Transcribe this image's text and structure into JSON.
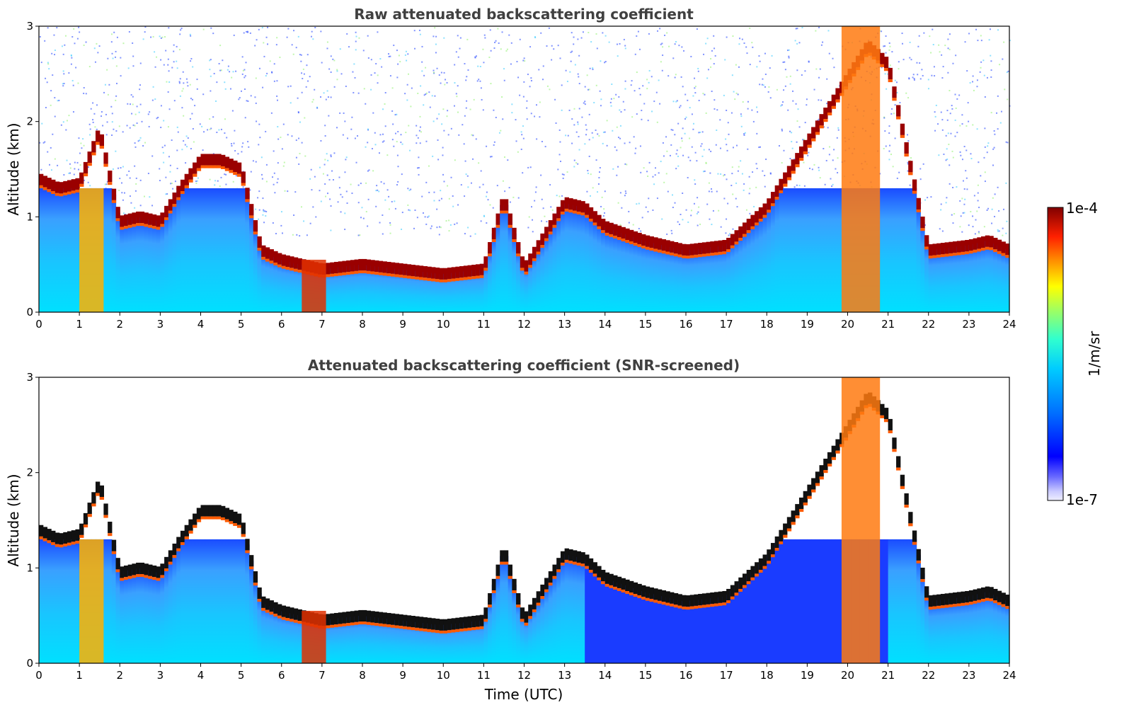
{
  "chart_data": [
    {
      "type": "heatmap",
      "title": "Raw attenuated backscattering coefficient",
      "xlabel": "",
      "ylabel": "Altitude (km)",
      "xlim": [
        0,
        24
      ],
      "ylim": [
        0,
        3
      ],
      "xticks": [
        "0",
        "1",
        "2",
        "3",
        "4",
        "5",
        "6",
        "7",
        "8",
        "9",
        "10",
        "11",
        "12",
        "13",
        "14",
        "15",
        "16",
        "17",
        "18",
        "19",
        "20",
        "21",
        "22",
        "23",
        "24"
      ],
      "yticks": [
        "0",
        "1",
        "2",
        "3"
      ],
      "grid": false,
      "layers": [
        {
          "x": [
            0,
            0.5,
            1,
            1.5,
            2,
            2.5,
            3,
            3.5,
            4,
            4.5,
            5,
            5.5,
            6,
            6.5,
            7,
            8,
            9,
            10,
            11,
            11.5,
            12,
            13,
            13.5,
            14,
            15,
            16,
            17,
            17.5,
            18,
            20.5,
            21,
            22,
            23,
            23.5,
            24
          ],
          "top_km": [
            1.4,
            1.3,
            1.35,
            1.9,
            0.95,
            1.0,
            0.95,
            1.3,
            1.6,
            1.6,
            1.5,
            0.65,
            0.55,
            0.5,
            0.45,
            0.5,
            0.45,
            0.4,
            0.45,
            1.2,
            0.45,
            1.15,
            1.1,
            0.9,
            0.75,
            0.65,
            0.7,
            0.9,
            1.1,
            2.8,
            2.6,
            0.65,
            0.7,
            0.75,
            0.65
          ]
        }
      ],
      "colorbar": {
        "min_label": "1e-7",
        "max_label": "1e-4",
        "unit": "1/m/sr",
        "scale": "log"
      }
    },
    {
      "type": "heatmap",
      "title": "Attenuated backscattering coefficient (SNR-screened)",
      "xlabel": "Time (UTC)",
      "ylabel": "Altitude (km)",
      "xlim": [
        0,
        24
      ],
      "ylim": [
        0,
        3
      ],
      "xticks": [
        "0",
        "1",
        "2",
        "3",
        "4",
        "5",
        "6",
        "7",
        "8",
        "9",
        "10",
        "11",
        "12",
        "13",
        "14",
        "15",
        "16",
        "17",
        "18",
        "19",
        "20",
        "21",
        "22",
        "23",
        "24"
      ],
      "yticks": [
        "0",
        "1",
        "2",
        "3"
      ],
      "grid": false,
      "screened": true
    }
  ]
}
